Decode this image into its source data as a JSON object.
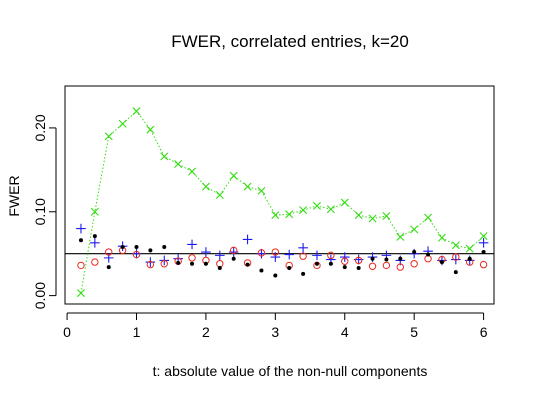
{
  "chart_data": {
    "type": "scatter",
    "title": "FWER, correlated entries, k=20",
    "xlabel": "t: absolute value of the non-null components",
    "ylabel": "FWER",
    "xlim": [
      -0.03,
      6.15
    ],
    "ylim": [
      -0.01,
      0.25
    ],
    "xticks": [
      "0",
      "1",
      "2",
      "3",
      "4",
      "5",
      "6"
    ],
    "yticks": [
      "0.00",
      "0.10",
      "0.20"
    ],
    "reference_line_y": 0.05,
    "x": [
      0.2,
      0.4,
      0.6,
      0.8,
      1.0,
      1.2,
      1.4,
      1.6,
      1.8,
      2.0,
      2.2,
      2.4,
      2.6,
      2.8,
      3.0,
      3.2,
      3.4,
      3.6,
      3.8,
      4.0,
      4.2,
      4.4,
      4.6,
      4.8,
      5.0,
      5.2,
      5.4,
      5.6,
      5.8,
      6.0
    ],
    "series": [
      {
        "marker": "x",
        "color": "#33dd11",
        "connected": true,
        "values": [
          0.003,
          0.1,
          0.19,
          0.205,
          0.22,
          0.198,
          0.166,
          0.157,
          0.148,
          0.13,
          0.12,
          0.143,
          0.13,
          0.125,
          0.096,
          0.097,
          0.102,
          0.107,
          0.103,
          0.111,
          0.096,
          0.092,
          0.095,
          0.07,
          0.079,
          0.093,
          0.069,
          0.06,
          0.056,
          0.071
        ]
      },
      {
        "marker": "+",
        "color": "#1c1cf2",
        "connected": false,
        "values": [
          0.08,
          0.063,
          0.045,
          0.059,
          0.05,
          0.04,
          0.042,
          0.044,
          0.061,
          0.052,
          0.048,
          0.052,
          0.067,
          0.05,
          0.046,
          0.049,
          0.057,
          0.048,
          0.043,
          0.046,
          0.043,
          0.046,
          0.048,
          0.042,
          0.05,
          0.053,
          0.042,
          0.043,
          0.042,
          0.063
        ]
      },
      {
        "marker": "o",
        "color": "#e8291f",
        "connected": false,
        "values": [
          0.036,
          0.04,
          0.052,
          0.054,
          0.049,
          0.037,
          0.038,
          0.041,
          0.045,
          0.042,
          0.038,
          0.054,
          0.039,
          0.051,
          0.052,
          0.036,
          0.047,
          0.036,
          0.048,
          0.041,
          0.042,
          0.035,
          0.036,
          0.034,
          0.038,
          0.044,
          0.043,
          0.046,
          0.04,
          0.037
        ]
      },
      {
        "marker": "dot",
        "color": "#000000",
        "connected": false,
        "values": [
          0.066,
          0.071,
          0.034,
          0.058,
          0.058,
          0.054,
          0.058,
          0.039,
          0.038,
          0.038,
          0.033,
          0.044,
          0.037,
          0.03,
          0.024,
          0.033,
          0.026,
          0.038,
          0.038,
          0.034,
          0.033,
          0.044,
          0.043,
          0.044,
          0.052,
          0.049,
          0.04,
          0.028,
          0.044,
          0.052
        ]
      }
    ]
  }
}
